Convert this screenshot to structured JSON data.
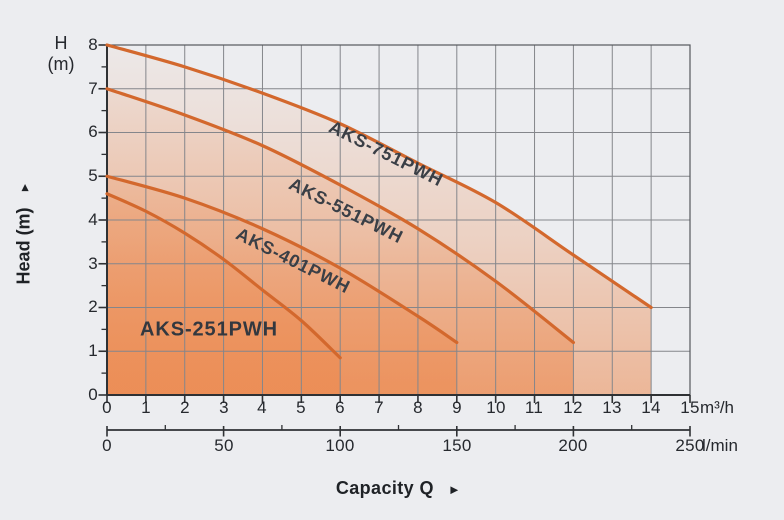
{
  "colors": {
    "background": "#ECEDF0",
    "curve_stroke": "#D3682D",
    "fill_base": "#ED8A50",
    "grid": "#84868B",
    "border": "#55585C",
    "axis": "#2F3134",
    "tick_text": "#26292E",
    "curve_label_text": "#3A3F46"
  },
  "axis_labels": {
    "y_corner": {
      "line1": "H",
      "line2": "(m)"
    },
    "y_title": {
      "text": "Head (m)",
      "arrow": "►"
    },
    "x_title": {
      "text": "Capacity Q",
      "arrow": "►"
    },
    "y_ticks": [
      "8",
      "7",
      "6",
      "5",
      "4",
      "3",
      "2",
      "1",
      "0"
    ],
    "x_m3h_ticks": [
      "0",
      "1",
      "2",
      "3",
      "4",
      "5",
      "6",
      "7",
      "8",
      "9",
      "10",
      "11",
      "12",
      "13",
      "14",
      "15"
    ],
    "x_m3h_unit": "m³/h",
    "x_lmin_ticks": [
      "0",
      "50",
      "100",
      "150",
      "200",
      "250"
    ],
    "x_lmin_unit": "l/min"
  },
  "chart_data": {
    "type": "line",
    "description": "Pump performance curves: Head (m) vs Capacity Q, four pump models, gradient-filled areas under each curve",
    "xlabel": "Capacity Q",
    "ylabel": "Head (m)",
    "x_axis_primary": {
      "unit": "m³/h",
      "range": [
        0,
        15
      ],
      "ticks": [
        0,
        1,
        2,
        3,
        4,
        5,
        6,
        7,
        8,
        9,
        10,
        11,
        12,
        13,
        14,
        15
      ]
    },
    "x_axis_secondary": {
      "unit": "l/min",
      "range": [
        0,
        250
      ],
      "ticks": [
        0,
        50,
        100,
        150,
        200,
        250
      ]
    },
    "ylim": [
      0,
      8
    ],
    "grid": true,
    "legend_position": "labels along curves",
    "series": [
      {
        "name": "AKS-751PWH",
        "points": [
          [
            0,
            8.0
          ],
          [
            2,
            7.5
          ],
          [
            4,
            6.9
          ],
          [
            6,
            6.2
          ],
          [
            8,
            5.3
          ],
          [
            10,
            4.4
          ],
          [
            12,
            3.2
          ],
          [
            14,
            2.0
          ]
        ]
      },
      {
        "name": "AKS-551PWH",
        "points": [
          [
            0,
            7.0
          ],
          [
            2,
            6.4
          ],
          [
            4,
            5.7
          ],
          [
            6,
            4.8
          ],
          [
            8,
            3.8
          ],
          [
            10,
            2.6
          ],
          [
            12,
            1.2
          ]
        ]
      },
      {
        "name": "AKS-401PWH",
        "points": [
          [
            0,
            5.0
          ],
          [
            2,
            4.5
          ],
          [
            4,
            3.8
          ],
          [
            6,
            2.9
          ],
          [
            8,
            1.8
          ],
          [
            9,
            1.2
          ]
        ]
      },
      {
        "name": "AKS-251PWH",
        "points": [
          [
            0,
            4.6
          ],
          [
            1,
            4.2
          ],
          [
            2,
            3.7
          ],
          [
            3,
            3.1
          ],
          [
            4,
            2.4
          ],
          [
            5,
            1.7
          ],
          [
            6,
            0.85
          ]
        ]
      }
    ]
  }
}
